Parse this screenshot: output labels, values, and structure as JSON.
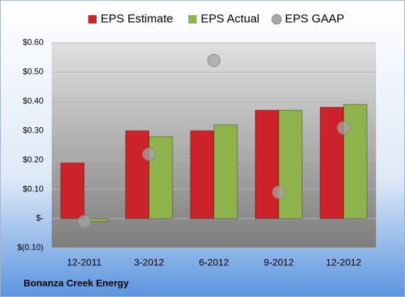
{
  "chart_data": {
    "type": "bar",
    "title": "Bonanza Creek Energy",
    "categories": [
      "12-2011",
      "3-2012",
      "6-2012",
      "9-2012",
      "12-2012"
    ],
    "series": [
      {
        "name": "EPS Estimate",
        "type": "bar",
        "color": "#cc2229",
        "values": [
          0.19,
          0.3,
          0.3,
          0.37,
          0.38
        ]
      },
      {
        "name": "EPS Actual",
        "type": "bar",
        "color": "#8db34a",
        "values": [
          -0.01,
          0.28,
          0.32,
          0.37,
          0.39
        ]
      },
      {
        "name": "EPS GAAP",
        "type": "scatter",
        "color": "#a6a6a6",
        "values": [
          -0.01,
          0.22,
          0.54,
          0.09,
          0.31
        ]
      }
    ],
    "ylim": [
      -0.1,
      0.6
    ],
    "yticks": [
      {
        "value": -0.1,
        "label": "$(0.10)"
      },
      {
        "value": 0,
        "label": "$-"
      },
      {
        "value": 0.1,
        "label": "$0.10"
      },
      {
        "value": 0.2,
        "label": "$0.20"
      },
      {
        "value": 0.3,
        "label": "$0.30"
      },
      {
        "value": 0.4,
        "label": "$0.40"
      },
      {
        "value": 0.5,
        "label": "$0.50"
      },
      {
        "value": 0.6,
        "label": "$0.60"
      }
    ],
    "grid": true,
    "legend": "top"
  }
}
